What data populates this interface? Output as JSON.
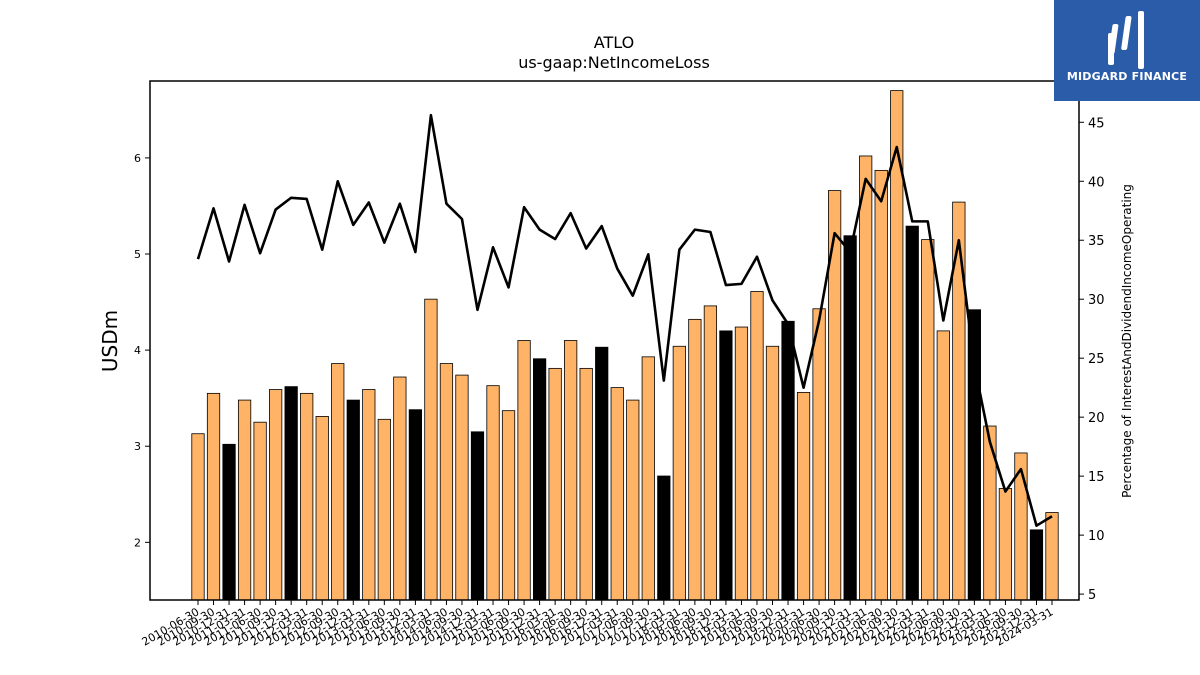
{
  "chart_data": {
    "type": "bar+line",
    "title": "ATLO",
    "subtitle": "us-gaap:NetIncomeLoss",
    "ylabel": "USDm",
    "y2label": "Percentage of InterestAndDividendIncomeOperating",
    "ylim": [
      1.4,
      6.8
    ],
    "y2lim": [
      4.5,
      48.5
    ],
    "yticks": [
      2,
      3,
      4,
      5,
      6
    ],
    "y2ticks": [
      5,
      10,
      15,
      20,
      25,
      30,
      35,
      40,
      45
    ],
    "categories": [
      "2010-06-30",
      "2010-09-30",
      "2010-12-31",
      "2011-03-31",
      "2011-06-30",
      "2011-09-30",
      "2011-12-31",
      "2012-03-31",
      "2012-06-30",
      "2012-09-30",
      "2012-12-31",
      "2013-03-31",
      "2013-06-30",
      "2013-09-30",
      "2013-12-31",
      "2014-03-31",
      "2014-06-30",
      "2014-09-30",
      "2014-12-31",
      "2015-03-31",
      "2015-06-30",
      "2015-09-30",
      "2015-12-31",
      "2016-03-31",
      "2016-06-30",
      "2016-09-30",
      "2016-12-31",
      "2017-03-31",
      "2017-06-30",
      "2017-09-30",
      "2017-12-31",
      "2018-03-31",
      "2018-06-30",
      "2018-09-30",
      "2018-12-31",
      "2019-03-31",
      "2019-06-30",
      "2019-09-30",
      "2019-12-31",
      "2020-03-31",
      "2020-06-30",
      "2020-09-30",
      "2020-12-31",
      "2021-03-31",
      "2021-06-30",
      "2021-09-30",
      "2021-12-31",
      "2022-03-31",
      "2022-06-30",
      "2022-09-30",
      "2022-12-31",
      "2023-03-31",
      "2023-06-30",
      "2023-09-30",
      "2023-12-31",
      "2024-03-31"
    ],
    "series": [
      {
        "type": "bar",
        "values": [
          3.13,
          3.55,
          3.02,
          3.48,
          3.25,
          3.59,
          3.62,
          3.55,
          3.31,
          3.86,
          3.48,
          3.59,
          3.28,
          3.72,
          3.38,
          4.53,
          3.86,
          3.74,
          3.15,
          3.63,
          3.37,
          4.1,
          3.91,
          3.81,
          4.1,
          3.81,
          4.03,
          3.61,
          3.48,
          3.93,
          2.69,
          4.04,
          4.32,
          4.46,
          4.2,
          4.24,
          4.61,
          4.04,
          4.3,
          3.56,
          4.43,
          5.66,
          5.19,
          6.02,
          5.87,
          6.7,
          5.29,
          5.15,
          4.2,
          5.54,
          4.42,
          3.21,
          2.56,
          2.93,
          2.13,
          2.31
        ],
        "highlight": [
          false,
          false,
          true,
          false,
          false,
          false,
          true,
          false,
          false,
          false,
          true,
          false,
          false,
          false,
          true,
          false,
          false,
          false,
          true,
          false,
          false,
          false,
          true,
          false,
          false,
          false,
          true,
          false,
          false,
          false,
          true,
          false,
          false,
          false,
          true,
          false,
          false,
          false,
          true,
          false,
          false,
          false,
          true,
          false,
          false,
          false,
          true,
          false,
          false,
          false,
          true,
          false,
          false,
          false,
          true,
          false
        ],
        "color": "#ffb366",
        "highlight_color": "#000000"
      },
      {
        "type": "line",
        "axis": "right",
        "values": [
          33.4,
          37.7,
          33.2,
          38.0,
          33.9,
          37.6,
          38.6,
          38.5,
          34.2,
          40.0,
          36.3,
          38.2,
          34.8,
          38.1,
          34.0,
          45.6,
          38.1,
          36.8,
          29.1,
          34.4,
          31.0,
          37.8,
          35.9,
          35.1,
          37.3,
          34.3,
          36.2,
          32.6,
          30.3,
          33.8,
          23.1,
          34.2,
          35.9,
          35.7,
          31.2,
          31.3,
          33.6,
          29.9,
          27.9,
          22.5,
          28.2,
          35.6,
          34.0,
          40.2,
          38.3,
          42.9,
          36.6,
          36.6,
          28.2,
          35.0,
          24.4,
          17.9,
          13.7,
          15.6,
          10.8,
          11.6
        ],
        "color": "#000000"
      }
    ]
  },
  "logo": {
    "text": "MIDGARD FINANCE",
    "color": "#2b5caa"
  }
}
